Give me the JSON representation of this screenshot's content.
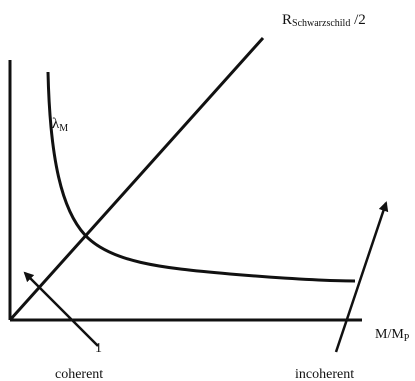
{
  "labels": {
    "top_right": {
      "R": "R",
      "sub": "Schwarzschild",
      "suffix": " /2"
    },
    "curve": {
      "base": "λ",
      "sub": "M"
    },
    "x_axis": {
      "base": "M/M",
      "sub": "P"
    },
    "tick_one": "1",
    "coherent": "coherent",
    "incoherent": "incoherent"
  },
  "colors": {
    "ink": "#111111",
    "background": "#ffffff"
  }
}
